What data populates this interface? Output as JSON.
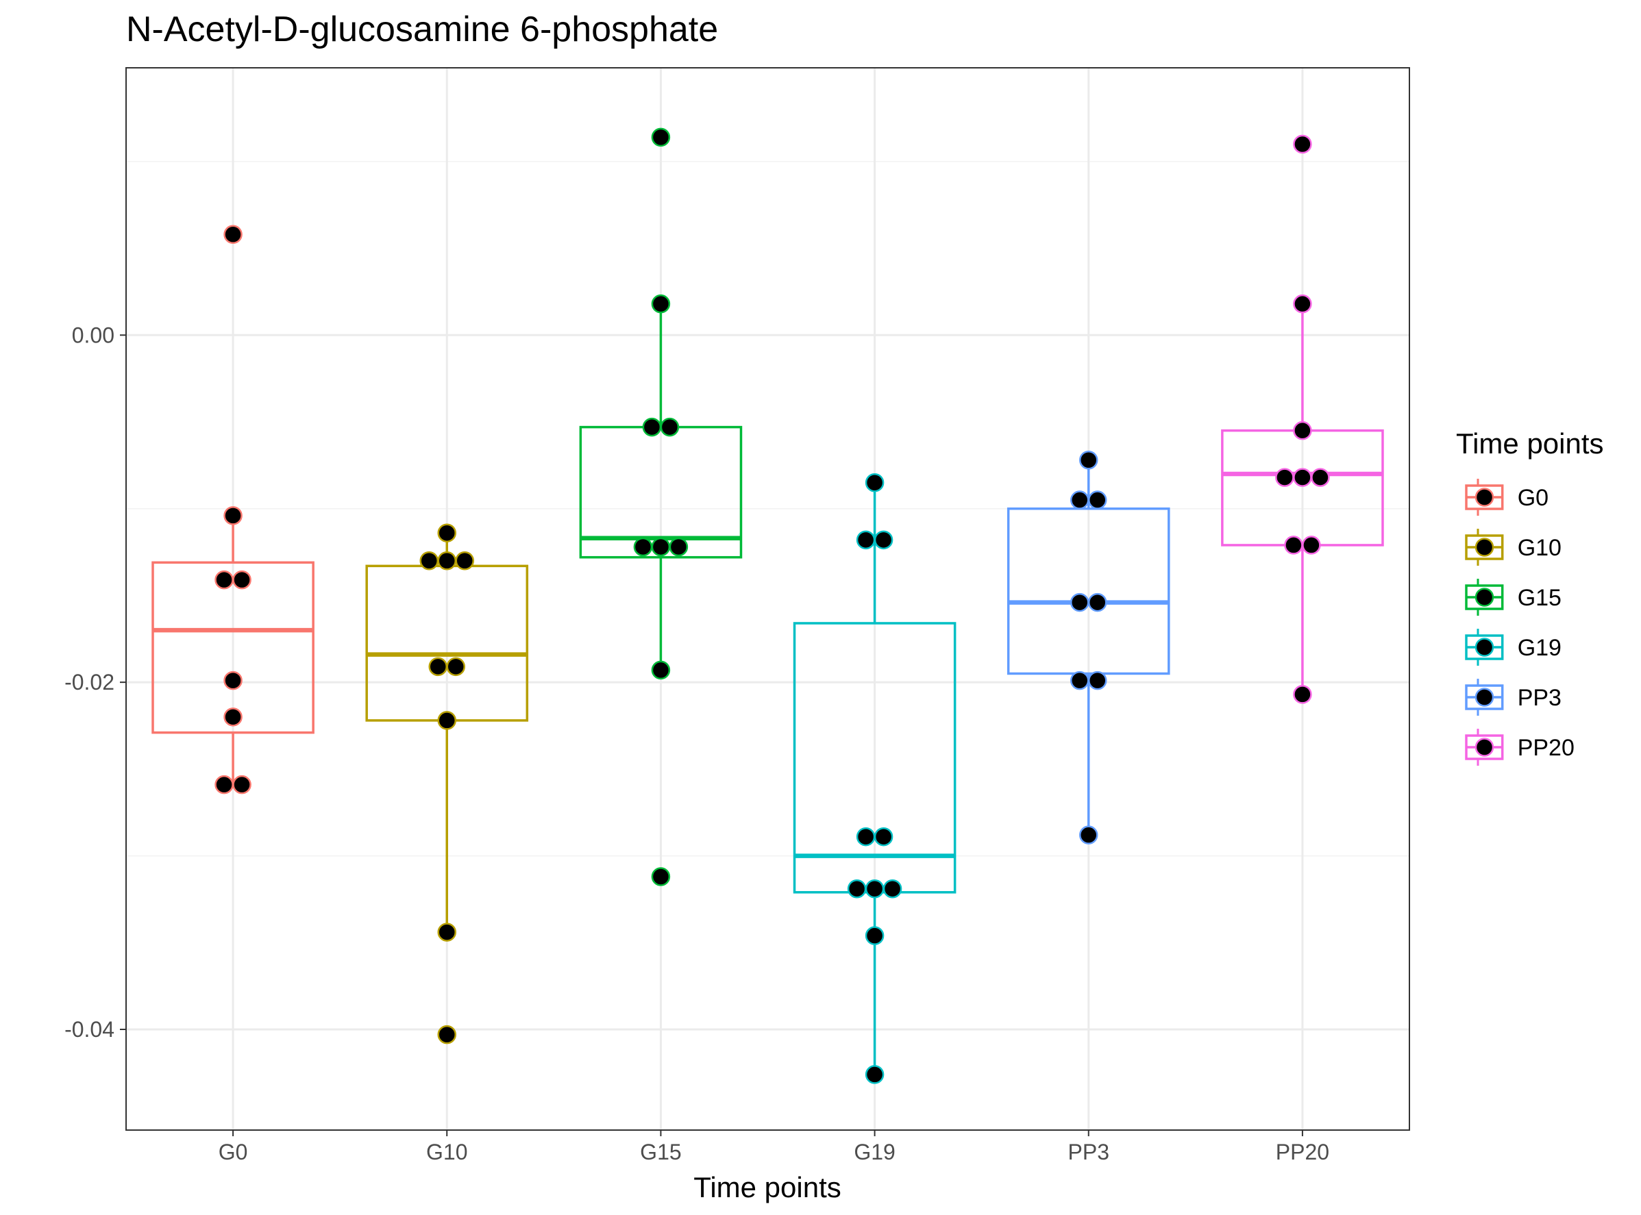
{
  "chart_data": {
    "type": "box",
    "title": "N-Acetyl-D-glucosamine 6-phosphate",
    "xlabel": "Time points",
    "ylabel": "",
    "ylim": [
      -0.0458,
      0.0154
    ],
    "yticks": [
      0.0,
      -0.02,
      -0.04
    ],
    "ytick_labels": [
      "0.00",
      "-0.02",
      "-0.04"
    ],
    "grid": true,
    "categories": [
      "G0",
      "G10",
      "G15",
      "G19",
      "PP3",
      "PP20"
    ],
    "legend": {
      "title": "Time points",
      "position": "right",
      "entries": [
        "G0",
        "G10",
        "G15",
        "G19",
        "PP3",
        "PP20"
      ]
    },
    "colors": {
      "G0": "#F8766D",
      "G10": "#B79F00",
      "G15": "#00BA38",
      "G19": "#00BFC4",
      "PP3": "#619CFF",
      "PP20": "#F564E3",
      "point_fill": "#000000"
    },
    "series": [
      {
        "category": "G0",
        "box": {
          "q1": -0.0229,
          "median": -0.017,
          "q3": -0.0131,
          "whisker_low": -0.0259,
          "whisker_high": -0.0104
        },
        "points": [
          0.0058,
          -0.0104,
          -0.0141,
          -0.0141,
          -0.0199,
          -0.022,
          -0.0259,
          -0.0259
        ]
      },
      {
        "category": "G10",
        "box": {
          "q1": -0.0222,
          "median": -0.0184,
          "q3": -0.0133,
          "whisker_low": -0.0344,
          "whisker_high": -0.0114
        },
        "points": [
          -0.0114,
          -0.013,
          -0.013,
          -0.013,
          -0.0191,
          -0.0191,
          -0.0222,
          -0.0344,
          -0.0403
        ]
      },
      {
        "category": "G15",
        "box": {
          "q1": -0.0128,
          "median": -0.0117,
          "q3": -0.0053,
          "whisker_low": -0.0193,
          "whisker_high": 0.0018
        },
        "points": [
          0.0114,
          0.0018,
          -0.0053,
          -0.0053,
          -0.0122,
          -0.0122,
          -0.0122,
          -0.0193,
          -0.0312
        ]
      },
      {
        "category": "G19",
        "box": {
          "q1": -0.0321,
          "median": -0.03,
          "q3": -0.0166,
          "whisker_low": -0.0426,
          "whisker_high": -0.0085
        },
        "points": [
          -0.0085,
          -0.0118,
          -0.0118,
          -0.0289,
          -0.0289,
          -0.0319,
          -0.0319,
          -0.0319,
          -0.0346,
          -0.0426
        ]
      },
      {
        "category": "PP3",
        "box": {
          "q1": -0.0195,
          "median": -0.0154,
          "q3": -0.01,
          "whisker_low": -0.0288,
          "whisker_high": -0.0072
        },
        "points": [
          -0.0072,
          -0.0095,
          -0.0095,
          -0.0154,
          -0.0154,
          -0.0199,
          -0.0199,
          -0.0288
        ]
      },
      {
        "category": "PP20",
        "box": {
          "q1": -0.0121,
          "median": -0.008,
          "q3": -0.0055,
          "whisker_low": -0.0207,
          "whisker_high": 0.0018
        },
        "points": [
          0.011,
          0.0018,
          -0.0055,
          -0.0082,
          -0.0082,
          -0.0082,
          -0.0121,
          -0.0121,
          -0.0207
        ]
      }
    ]
  }
}
